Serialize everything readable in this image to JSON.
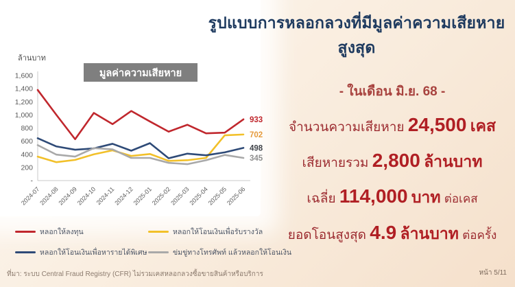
{
  "title": "รูปแบบการหลอกลวงที่มีมูลค่าความเสียหายสูงสุด",
  "chart_data": {
    "type": "line",
    "title": "มูลค่าความเสียหาย",
    "ylabel": "ล้านบาท",
    "ylim": [
      0,
      1600
    ],
    "ytick_step": 200,
    "grid": false,
    "legend_position": "bottom",
    "categories": [
      "2024-07",
      "2024-08",
      "2024-09",
      "2024-10",
      "2024-11",
      "2024-12",
      "2025-01",
      "2025-02",
      "2025-03",
      "2025-04",
      "2025-05",
      "2025-06"
    ],
    "series": [
      {
        "name": "หลอกให้ลงทุน",
        "color": "#c0272d",
        "label_color": "#c0272d",
        "end_label": "933",
        "values": [
          1380,
          1000,
          630,
          1030,
          860,
          1060,
          900,
          745,
          850,
          720,
          730,
          933
        ]
      },
      {
        "name": "หลอกให้โอนเงินเพื่อรับรางวัล",
        "color": "#f2c029",
        "label_color": "#e59a3c",
        "end_label": "702",
        "values": [
          365,
          280,
          315,
          400,
          460,
          375,
          405,
          300,
          310,
          345,
          690,
          702
        ]
      },
      {
        "name": "หลอกให้โอนเงินเพื่อหารายได้พิเศษ",
        "color": "#2e4a77",
        "label_color": "#3f4349",
        "end_label": "498",
        "values": [
          645,
          520,
          470,
          490,
          560,
          455,
          570,
          340,
          410,
          385,
          430,
          498
        ]
      },
      {
        "name": "ข่มขู่ทางโทรศัพท์ แล้วหลอกให้โอนเงิน",
        "color": "#a9a9a9",
        "label_color": "#8f8f8f",
        "end_label": "345",
        "values": [
          540,
          395,
          365,
          495,
          475,
          345,
          345,
          270,
          250,
          310,
          390,
          345
        ]
      }
    ]
  },
  "stats": {
    "header": "- ในเดือน มิ.ย. 68 -",
    "lines": [
      {
        "prefix": "จำนวนความเสียหาย",
        "value": "24,500",
        "unit": "เคส",
        "suffix": ""
      },
      {
        "prefix": "เสียหายรวม",
        "value": "2,800",
        "unit": "ล้านบาท",
        "suffix": ""
      },
      {
        "prefix": "เฉลี่ย",
        "value": "114,000",
        "unit": "บาท",
        "suffix": "ต่อเคส"
      },
      {
        "prefix": "ยอดโอนสูงสุด",
        "value": "4.9",
        "unit": "ล้านบาท",
        "suffix": "ต่อครั้ง"
      }
    ]
  },
  "footer": {
    "source": "ที่มา: ระบบ Central Fraud Registry (CFR) ไม่รวมเคสหลอกลวงซื้อขายสินค้าหรือบริการ",
    "page": "หน้า 5/11"
  }
}
